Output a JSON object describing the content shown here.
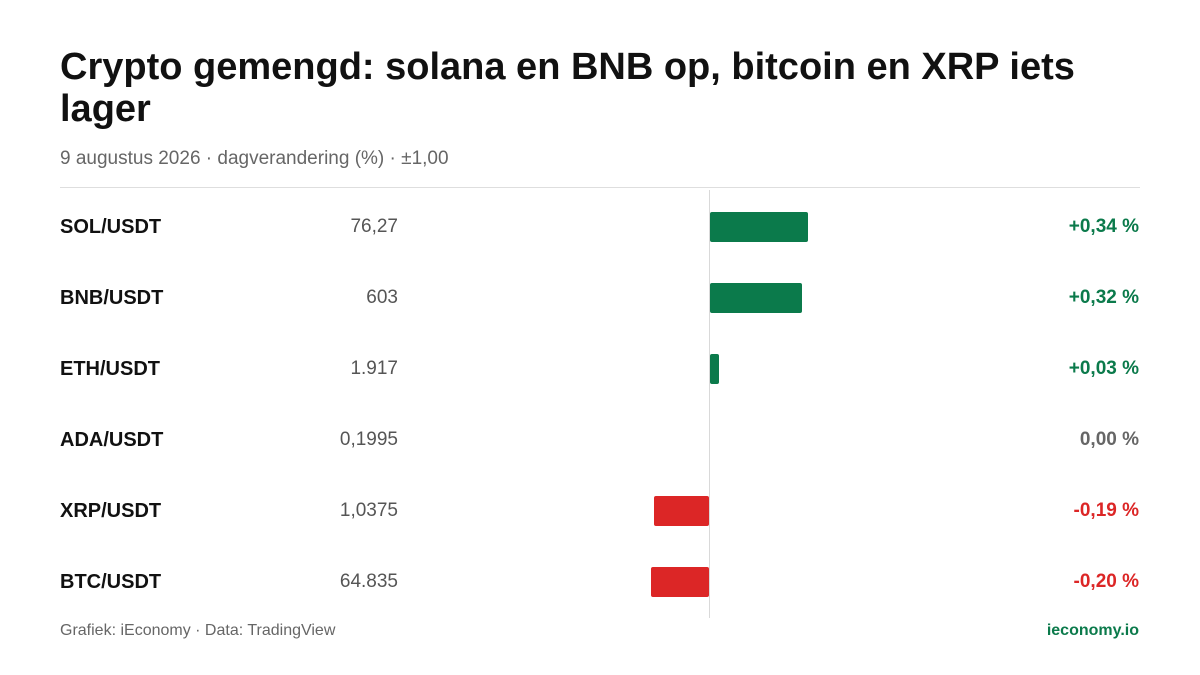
{
  "chart_data": {
    "type": "bar",
    "orientation": "horizontal",
    "title": "Crypto gemengd: solana en BNB op, bitcoin en XRP iets lager",
    "subtitle": "9 augustus 2026 · dagverandering (%) · ±1,00",
    "categories": [
      "SOL/USDT",
      "BNB/USDT",
      "ETH/USDT",
      "ADA/USDT",
      "XRP/USDT",
      "BTC/USDT"
    ],
    "prices": [
      "76,27",
      "603",
      "1.917",
      "0,1995",
      "1,0375",
      "64.835"
    ],
    "values": [
      0.34,
      0.32,
      0.03,
      0.0,
      -0.19,
      -0.2
    ],
    "value_labels": [
      "+0,34 %",
      "+0,32 %",
      "+0,03 %",
      "0,00 %",
      "-0,19 %",
      "-0,20 %"
    ],
    "xlim": [
      -1,
      1
    ],
    "grid": false,
    "legend": "none",
    "colors": {
      "positive": "#0b7a4b",
      "negative": "#dc2626",
      "neutral": "#666666"
    }
  },
  "footer": {
    "credit": "Grafiek: iEconomy · Data: TradingView",
    "site": "ieconomy.io"
  }
}
